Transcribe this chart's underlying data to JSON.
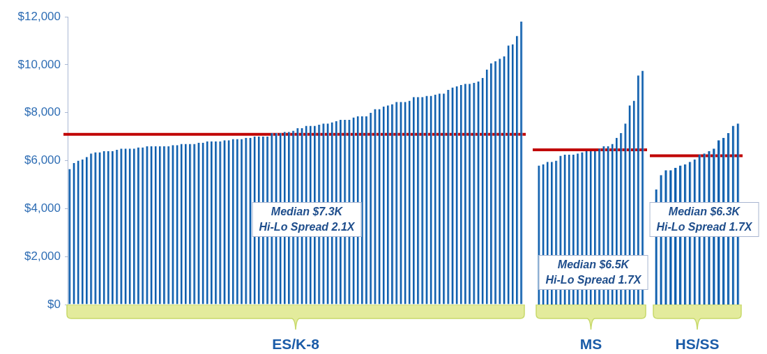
{
  "chart_data": [
    {
      "type": "bar",
      "color": "#0f5fad",
      "ylim": [
        0,
        12000
      ],
      "yticks": [
        {
          "value": 0,
          "label": "$0"
        },
        {
          "value": 2000,
          "label": "$2,000"
        },
        {
          "value": 4000,
          "label": "$4,000"
        },
        {
          "value": 6000,
          "label": "$6,000"
        },
        {
          "value": 8000,
          "label": "$8,000"
        },
        {
          "value": 10000,
          "label": "$10,000"
        },
        {
          "value": 12000,
          "label": "$12,000"
        }
      ],
      "tick_labels": "y",
      "categories": [
        null,
        null,
        null,
        null,
        null,
        null,
        null,
        null,
        null,
        null,
        null,
        null,
        null,
        null,
        null,
        null,
        null,
        null,
        null,
        null,
        null,
        null,
        null,
        null,
        null,
        null,
        null,
        null,
        null,
        null,
        null,
        null,
        null,
        null,
        null,
        null,
        null,
        null,
        null,
        null,
        null,
        null,
        null,
        null,
        null,
        null,
        null,
        null,
        null,
        null,
        null,
        null,
        null,
        null,
        null,
        null,
        null,
        null,
        null,
        null,
        null,
        null,
        null,
        null,
        null,
        null,
        null,
        null,
        null,
        null,
        null,
        null,
        null,
        null,
        null,
        null,
        null,
        null,
        null,
        null,
        null,
        null,
        null,
        null,
        null,
        null,
        null,
        null,
        null,
        null,
        null,
        null,
        null,
        null,
        null,
        null,
        null,
        null,
        null,
        null,
        null,
        null,
        null,
        null,
        null,
        null
      ],
      "values": [
        5650,
        5900,
        6000,
        6050,
        6150,
        6300,
        6350,
        6350,
        6400,
        6400,
        6400,
        6450,
        6500,
        6500,
        6500,
        6500,
        6550,
        6550,
        6600,
        6600,
        6600,
        6600,
        6600,
        6600,
        6650,
        6650,
        6700,
        6700,
        6700,
        6700,
        6750,
        6750,
        6800,
        6800,
        6800,
        6800,
        6850,
        6850,
        6900,
        6900,
        6900,
        6950,
        6950,
        7000,
        7000,
        7000,
        7000,
        7150,
        7150,
        7150,
        7200,
        7200,
        7250,
        7350,
        7350,
        7450,
        7450,
        7450,
        7500,
        7550,
        7550,
        7600,
        7650,
        7700,
        7700,
        7700,
        7800,
        7850,
        7850,
        7850,
        8000,
        8150,
        8150,
        8250,
        8300,
        8350,
        8450,
        8450,
        8450,
        8500,
        8650,
        8650,
        8650,
        8700,
        8700,
        8750,
        8800,
        8800,
        8950,
        9050,
        9100,
        9150,
        9200,
        9200,
        9250,
        9300,
        9450,
        9800,
        10050,
        10150,
        10250,
        10350,
        10800,
        10850,
        11200,
        11800
      ],
      "ref_lines": [
        {
          "axis": "y",
          "value": 7100,
          "color": "#c00000"
        }
      ],
      "annotations": [
        "ES/K-8",
        "Median $7.3K\nHi-Lo Spread 2.1X"
      ]
    },
    {
      "type": "bar",
      "color": "#0f5fad",
      "ylim": [
        0,
        12000
      ],
      "tick_labels": false,
      "categories": [
        null,
        null,
        null,
        null,
        null,
        null,
        null,
        null,
        null,
        null,
        null,
        null,
        null,
        null,
        null,
        null,
        null,
        null,
        null,
        null,
        null,
        null,
        null,
        null,
        null
      ],
      "values": [
        5800,
        5850,
        5950,
        5950,
        6000,
        6200,
        6250,
        6250,
        6250,
        6300,
        6350,
        6400,
        6400,
        6400,
        6500,
        6600,
        6600,
        6700,
        6950,
        7150,
        7550,
        8300,
        8500,
        9550,
        9750
      ],
      "ref_lines": [
        {
          "axis": "y",
          "value": 6450,
          "color": "#c00000"
        }
      ],
      "annotations": [
        "MS",
        "Median $6.5K\nHi-Lo Spread 1.7X"
      ]
    },
    {
      "type": "bar",
      "color": "#0f5fad",
      "ylim": [
        0,
        12000
      ],
      "tick_labels": false,
      "categories": [
        null,
        null,
        null,
        null,
        null,
        null,
        null,
        null,
        null,
        null,
        null,
        null,
        null,
        null,
        null,
        null,
        null,
        null
      ],
      "values": [
        4800,
        5400,
        5600,
        5600,
        5700,
        5800,
        5850,
        5950,
        6050,
        6250,
        6300,
        6400,
        6500,
        6850,
        6950,
        7150,
        7450,
        7550
      ],
      "ref_lines": [
        {
          "axis": "y",
          "value": 6200,
          "color": "#c00000"
        }
      ],
      "annotations": [
        "HS/SS",
        "Median $6.3K\nHi-Lo Spread 1.7X"
      ]
    }
  ]
}
